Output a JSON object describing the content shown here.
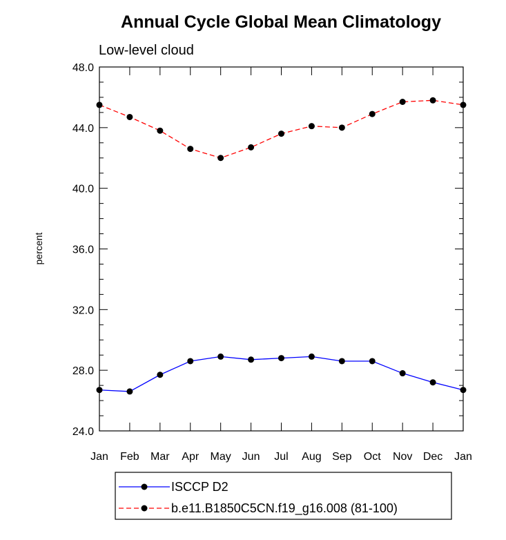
{
  "chart_data": {
    "type": "line",
    "title": "Annual Cycle Global Mean Climatology",
    "subtitle": "Low-level cloud",
    "xlabel": "",
    "ylabel": "percent",
    "categories": [
      "Jan",
      "Feb",
      "Mar",
      "Apr",
      "May",
      "Jun",
      "Jul",
      "Aug",
      "Sep",
      "Oct",
      "Nov",
      "Dec",
      "Jan"
    ],
    "ylim": [
      24.0,
      48.0
    ],
    "yticks": [
      "24.0",
      "28.0",
      "32.0",
      "36.0",
      "40.0",
      "44.0",
      "48.0"
    ],
    "grid": false,
    "legend_position": "bottom-center",
    "series": [
      {
        "name": "ISCCP D2",
        "color": "#0000ff",
        "line_style": "solid",
        "marker": "filled-circle",
        "values": [
          26.7,
          26.6,
          27.7,
          28.6,
          28.9,
          28.7,
          28.8,
          28.9,
          28.6,
          28.6,
          27.8,
          27.2,
          26.7
        ]
      },
      {
        "name": "b.e11.B1850C5CN.f19_g16.008 (81-100)",
        "color": "#ff0000",
        "line_style": "dashed",
        "marker": "filled-circle",
        "values": [
          45.5,
          44.7,
          43.8,
          42.6,
          42.0,
          42.7,
          43.6,
          44.1,
          44.0,
          44.9,
          45.7,
          45.8,
          45.5
        ]
      }
    ]
  }
}
